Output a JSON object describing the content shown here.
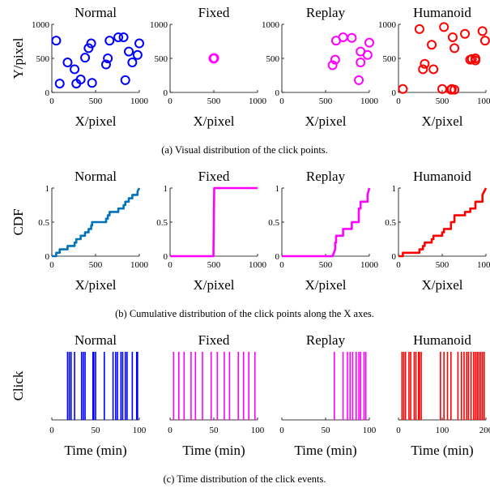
{
  "captions": {
    "a": "(a)  Visual distribution of the click points.",
    "b": "(b)  Cumulative distribution of the click points along the X axes.",
    "c": "(c)  Time distribution of the click events."
  },
  "chart_data": [
    {
      "id": "a-normal",
      "row": 0,
      "col": 0,
      "type": "scatter",
      "title": "Normal",
      "xlabel": "X/pixel",
      "ylabel": "Y/pixel",
      "xlim": [
        0,
        1000
      ],
      "ylim": [
        0,
        1000
      ],
      "xticks": [
        0,
        500,
        1000
      ],
      "yticks": [
        0,
        500,
        1000
      ],
      "color": "#0000ff",
      "x": [
        50,
        90,
        180,
        260,
        280,
        330,
        380,
        450,
        460,
        420,
        620,
        640,
        660,
        760,
        820,
        840,
        880,
        920,
        980,
        1000
      ],
      "y": [
        760,
        130,
        440,
        340,
        130,
        190,
        510,
        720,
        140,
        650,
        410,
        500,
        760,
        810,
        810,
        180,
        600,
        440,
        550,
        720
      ]
    },
    {
      "id": "a-fixed",
      "row": 0,
      "col": 1,
      "type": "scatter",
      "title": "Fixed",
      "xlabel": "X/pixel",
      "ylabel": "",
      "xlim": [
        0,
        1000
      ],
      "ylim": [
        0,
        1000
      ],
      "xticks": [
        0,
        500,
        1000
      ],
      "yticks": [
        0,
        500,
        1000
      ],
      "color": "#ff00ff",
      "x": [
        500,
        500,
        505,
        495
      ],
      "y": [
        500,
        495,
        505,
        500
      ]
    },
    {
      "id": "a-replay",
      "row": 0,
      "col": 2,
      "type": "scatter",
      "title": "Replay",
      "xlabel": "X/pixel",
      "ylabel": "",
      "xlim": [
        0,
        1000
      ],
      "ylim": [
        0,
        1000
      ],
      "xticks": [
        0,
        500,
        1000
      ],
      "yticks": [
        0,
        500,
        1000
      ],
      "color": "#ff00ff",
      "x": [
        580,
        610,
        620,
        700,
        800,
        880,
        900,
        900,
        980,
        1000
      ],
      "y": [
        400,
        480,
        760,
        810,
        800,
        180,
        600,
        440,
        550,
        730
      ]
    },
    {
      "id": "a-humanoid",
      "row": 0,
      "col": 3,
      "type": "scatter",
      "title": "Humanoid",
      "xlabel": "X/pixel",
      "ylabel": "",
      "xlim": [
        0,
        1000
      ],
      "ylim": [
        0,
        1000
      ],
      "xticks": [
        0,
        500,
        1000
      ],
      "yticks": [
        0,
        500,
        1000
      ],
      "color": "#ff0000",
      "x": [
        50,
        240,
        280,
        300,
        380,
        400,
        500,
        520,
        600,
        610,
        620,
        640,
        640,
        760,
        820,
        840,
        880,
        880,
        960,
        990
      ],
      "y": [
        50,
        930,
        340,
        420,
        700,
        340,
        50,
        960,
        40,
        50,
        810,
        650,
        40,
        860,
        480,
        490,
        470,
        500,
        900,
        760
      ]
    },
    {
      "id": "b-normal",
      "row": 1,
      "col": 0,
      "type": "line",
      "title": "Normal",
      "xlabel": "X/pixel",
      "ylabel": "CDF",
      "xlim": [
        0,
        1000
      ],
      "ylim": [
        0,
        1
      ],
      "xticks": [
        0,
        500,
        1000
      ],
      "yticks": [
        0,
        0.5,
        1
      ],
      "color": "#0072bd",
      "x": [
        0,
        50,
        50,
        90,
        90,
        180,
        180,
        260,
        260,
        280,
        280,
        330,
        330,
        380,
        380,
        420,
        420,
        450,
        450,
        460,
        460,
        620,
        620,
        640,
        640,
        660,
        660,
        760,
        760,
        820,
        820,
        840,
        840,
        880,
        880,
        920,
        920,
        980,
        980,
        1000
      ],
      "y": [
        0,
        0,
        0.05,
        0.05,
        0.1,
        0.1,
        0.15,
        0.15,
        0.2,
        0.2,
        0.25,
        0.25,
        0.3,
        0.3,
        0.35,
        0.35,
        0.4,
        0.4,
        0.45,
        0.45,
        0.5,
        0.5,
        0.55,
        0.55,
        0.6,
        0.6,
        0.65,
        0.65,
        0.7,
        0.7,
        0.75,
        0.75,
        0.8,
        0.8,
        0.85,
        0.85,
        0.9,
        0.9,
        0.95,
        1.0
      ]
    },
    {
      "id": "b-fixed",
      "row": 1,
      "col": 1,
      "type": "line",
      "title": "Fixed",
      "xlabel": "X/pixel",
      "ylabel": "",
      "xlim": [
        0,
        1000
      ],
      "ylim": [
        0,
        1
      ],
      "xticks": [
        0,
        500,
        1000
      ],
      "yticks": [
        0,
        0.5,
        1
      ],
      "color": "#ff00ff",
      "x": [
        0,
        495,
        505,
        1000
      ],
      "y": [
        0,
        0,
        1,
        1
      ]
    },
    {
      "id": "b-replay",
      "row": 1,
      "col": 2,
      "type": "line",
      "title": "Replay",
      "xlabel": "X/pixel",
      "ylabel": "",
      "xlim": [
        0,
        1000
      ],
      "ylim": [
        0,
        1
      ],
      "xticks": [
        0,
        500,
        1000
      ],
      "yticks": [
        0,
        0.5,
        1
      ],
      "color": "#ff00ff",
      "x": [
        0,
        580,
        610,
        610,
        620,
        620,
        700,
        700,
        800,
        800,
        880,
        880,
        900,
        900,
        980,
        980,
        1000
      ],
      "y": [
        0,
        0,
        0.1,
        0.2,
        0.2,
        0.3,
        0.3,
        0.4,
        0.4,
        0.5,
        0.5,
        0.7,
        0.7,
        0.8,
        0.8,
        0.9,
        1.0
      ]
    },
    {
      "id": "b-humanoid",
      "row": 1,
      "col": 3,
      "type": "line",
      "title": "Humanoid",
      "xlabel": "X/pixel",
      "ylabel": "",
      "xlim": [
        0,
        1000
      ],
      "ylim": [
        0,
        1
      ],
      "xticks": [
        0,
        500,
        1000
      ],
      "yticks": [
        0,
        0.5,
        1
      ],
      "color": "#ff0000",
      "x": [
        0,
        50,
        50,
        240,
        240,
        280,
        280,
        300,
        300,
        380,
        380,
        400,
        400,
        500,
        500,
        520,
        520,
        600,
        600,
        640,
        640,
        760,
        760,
        820,
        820,
        880,
        880,
        960,
        960,
        1000
      ],
      "y": [
        0,
        0,
        0.05,
        0.05,
        0.1,
        0.1,
        0.15,
        0.15,
        0.2,
        0.2,
        0.25,
        0.25,
        0.3,
        0.3,
        0.35,
        0.35,
        0.4,
        0.4,
        0.5,
        0.5,
        0.6,
        0.6,
        0.65,
        0.65,
        0.7,
        0.7,
        0.8,
        0.8,
        0.9,
        1.0
      ]
    },
    {
      "id": "c-normal",
      "row": 2,
      "col": 0,
      "type": "events",
      "title": "Normal",
      "xlabel": "Time (min)",
      "ylabel": "Click",
      "xlim": [
        0,
        100
      ],
      "xticks": [
        0,
        50,
        100
      ],
      "color": "#0000ff",
      "x": [
        18,
        20,
        22,
        26,
        34,
        36,
        38,
        47,
        48,
        50,
        60,
        70,
        73,
        75,
        79,
        81,
        84,
        86,
        92,
        97,
        98
      ]
    },
    {
      "id": "c-fixed",
      "row": 2,
      "col": 1,
      "type": "events",
      "title": "Fixed",
      "xlabel": "Time (min)",
      "ylabel": "",
      "xlim": [
        0,
        100
      ],
      "xticks": [
        0,
        50,
        100
      ],
      "color": "#ff00ff",
      "x": [
        4,
        10,
        16,
        24,
        29,
        37,
        47,
        54,
        62,
        68,
        78,
        84,
        90,
        97
      ]
    },
    {
      "id": "c-replay",
      "row": 2,
      "col": 2,
      "type": "events",
      "title": "Replay",
      "xlabel": "Time (min)",
      "ylabel": "",
      "xlim": [
        0,
        100
      ],
      "xticks": [
        0,
        50,
        100
      ],
      "color": "#ff00ff",
      "x": [
        60,
        70,
        75,
        78,
        81,
        85,
        88,
        90,
        94,
        96
      ]
    },
    {
      "id": "c-humanoid",
      "row": 2,
      "col": 3,
      "type": "events",
      "title": "Humanoid",
      "xlabel": "Time (min)",
      "ylabel": "",
      "xlim": [
        0,
        200
      ],
      "xticks": [
        0,
        100,
        200
      ],
      "color": "#ff0000",
      "x": [
        8,
        12,
        16,
        24,
        28,
        36,
        40,
        46,
        48,
        52,
        96,
        104,
        112,
        120,
        136,
        144,
        150,
        156,
        160,
        166,
        172,
        176,
        180,
        184,
        188,
        192,
        196
      ]
    }
  ]
}
